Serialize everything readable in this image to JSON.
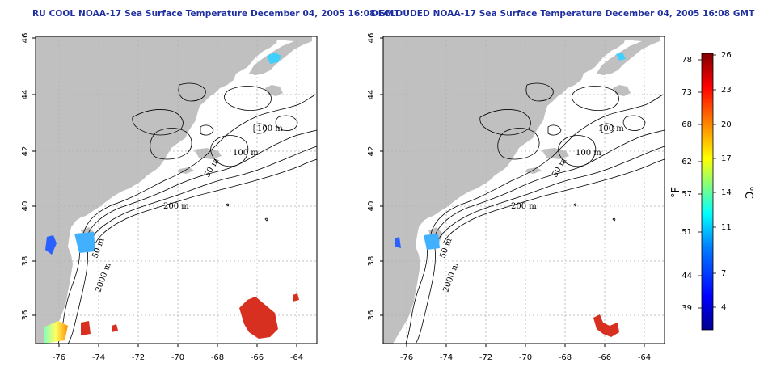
{
  "panels": [
    {
      "id": "left",
      "title": "RU COOL NOAA-17 Sea Surface Temperature December 04, 2005 16:08 GMT",
      "contour_labels": [
        "100 m",
        "100 m",
        "50 m",
        "200 m",
        "50 m",
        "2000 m"
      ]
    },
    {
      "id": "right",
      "title": "DECLOUDED NOAA-17 Sea Surface Temperature December 04, 2005 16:08 GMT",
      "contour_labels": [
        "100 m",
        "100 m",
        "50 m",
        "200 m",
        "50 m",
        "2000 m"
      ]
    }
  ],
  "axes": {
    "lon_ticks": [
      "-76",
      "-74",
      "-72",
      "-70",
      "-68",
      "-66",
      "-64"
    ],
    "lat_ticks": [
      "36",
      "38",
      "40",
      "42",
      "44",
      "46"
    ]
  },
  "colorbar": {
    "fahrenheit_label": "°F",
    "celsius_label": "°C",
    "fahrenheit_ticks": [
      "78",
      "73",
      "68",
      "62",
      "57",
      "51",
      "44",
      "39"
    ],
    "celsius_ticks": [
      "26",
      "23",
      "20",
      "17",
      "14",
      "11",
      "7",
      "4"
    ],
    "colors": [
      "#00008f",
      "#0000ff",
      "#0080ff",
      "#00ffff",
      "#80ff80",
      "#ffff00",
      "#ff8000",
      "#ff0000",
      "#800000"
    ]
  },
  "colors": {
    "land": "#c0c0c0",
    "grid": "#b0b0b0",
    "title": "#1f2f9f"
  }
}
